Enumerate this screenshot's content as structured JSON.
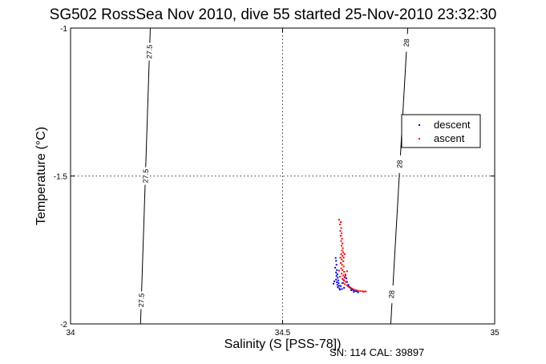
{
  "chart_data": {
    "type": "scatter",
    "title": "SG502 RossSea Nov 2010, dive 55 started 25-Nov-2010 23:32:30",
    "xlabel": "Salinity (S [PSS-78])",
    "ylabel": "Temperature (°C)",
    "xlim": [
      34,
      35
    ],
    "ylim": [
      -2,
      -1
    ],
    "xticks": [
      34,
      34.5,
      35
    ],
    "yticks": [
      -2,
      -1.5,
      -1
    ],
    "xtick_labels": [
      "34",
      "34.5",
      "35"
    ],
    "ytick_labels": [
      "-2",
      "-1.5",
      "-1"
    ],
    "grid": true,
    "legend_position": "top-right",
    "isopycnals": [
      {
        "label": "27.5",
        "points": [
          [
            34.188,
            -1
          ],
          [
            34.165,
            -2
          ]
        ],
        "label_positions": [
          [
            34.186,
            -1.08
          ],
          [
            34.177,
            -1.5
          ],
          [
            34.167,
            -1.92
          ]
        ]
      },
      {
        "label": "28",
        "points": [
          [
            34.795,
            -1
          ],
          [
            34.755,
            -2
          ]
        ],
        "label_positions": [
          [
            34.792,
            -1.05
          ],
          [
            34.776,
            -1.46
          ],
          [
            34.757,
            -1.9
          ]
        ]
      }
    ],
    "series": [
      {
        "name": "descent",
        "color": "#0000ff",
        "points": [
          [
            34.625,
            -1.777
          ],
          [
            34.626,
            -1.787
          ],
          [
            34.627,
            -1.8
          ],
          [
            34.624,
            -1.81
          ],
          [
            34.628,
            -1.818
          ],
          [
            34.626,
            -1.826
          ],
          [
            34.629,
            -1.832
          ],
          [
            34.627,
            -1.838
          ],
          [
            34.63,
            -1.844
          ],
          [
            34.626,
            -1.85
          ],
          [
            34.631,
            -1.853
          ],
          [
            34.628,
            -1.859
          ],
          [
            34.632,
            -1.862
          ],
          [
            34.629,
            -1.868
          ],
          [
            34.633,
            -1.871
          ],
          [
            34.63,
            -1.876
          ],
          [
            34.634,
            -1.88
          ],
          [
            34.637,
            -1.872
          ],
          [
            34.641,
            -1.862
          ],
          [
            34.644,
            -1.852
          ],
          [
            34.646,
            -1.843
          ],
          [
            34.648,
            -1.836
          ],
          [
            34.65,
            -1.846
          ],
          [
            34.652,
            -1.858
          ],
          [
            34.655,
            -1.868
          ],
          [
            34.658,
            -1.876
          ],
          [
            34.661,
            -1.88
          ],
          [
            34.664,
            -1.884
          ],
          [
            34.667,
            -1.886
          ],
          [
            34.671,
            -1.888
          ],
          [
            34.675,
            -1.89
          ],
          [
            34.678,
            -1.893
          ],
          [
            34.622,
            -1.856
          ],
          [
            34.62,
            -1.864
          ],
          [
            34.635,
            -1.884
          ],
          [
            34.64,
            -1.882
          ],
          [
            34.645,
            -1.878
          ],
          [
            34.654,
            -1.872
          ],
          [
            34.662,
            -1.886
          ],
          [
            34.668,
            -1.892
          ]
        ]
      },
      {
        "name": "ascent",
        "color": "#ff0000",
        "points": [
          [
            34.633,
            -1.648
          ],
          [
            34.637,
            -1.656
          ],
          [
            34.635,
            -1.664
          ],
          [
            34.638,
            -1.676
          ],
          [
            34.636,
            -1.686
          ],
          [
            34.639,
            -1.694
          ],
          [
            34.637,
            -1.702
          ],
          [
            34.64,
            -1.712
          ],
          [
            34.638,
            -1.72
          ],
          [
            34.641,
            -1.728
          ],
          [
            34.639,
            -1.736
          ],
          [
            34.642,
            -1.744
          ],
          [
            34.64,
            -1.752
          ],
          [
            34.643,
            -1.758
          ],
          [
            34.638,
            -1.764
          ],
          [
            34.641,
            -1.77
          ],
          [
            34.636,
            -1.776
          ],
          [
            34.639,
            -1.782
          ],
          [
            34.643,
            -1.788
          ],
          [
            34.637,
            -1.794
          ],
          [
            34.64,
            -1.8
          ],
          [
            34.644,
            -1.806
          ],
          [
            34.638,
            -1.812
          ],
          [
            34.641,
            -1.818
          ],
          [
            34.645,
            -1.824
          ],
          [
            34.639,
            -1.83
          ],
          [
            34.643,
            -1.836
          ],
          [
            34.647,
            -1.842
          ],
          [
            34.641,
            -1.848
          ],
          [
            34.645,
            -1.854
          ],
          [
            34.649,
            -1.858
          ],
          [
            34.643,
            -1.862
          ],
          [
            34.647,
            -1.866
          ],
          [
            34.652,
            -1.87
          ],
          [
            34.656,
            -1.874
          ],
          [
            34.66,
            -1.878
          ],
          [
            34.664,
            -1.881
          ],
          [
            34.668,
            -1.884
          ],
          [
            34.673,
            -1.886
          ],
          [
            34.678,
            -1.888
          ],
          [
            34.683,
            -1.889
          ],
          [
            34.688,
            -1.89
          ],
          [
            34.692,
            -1.891
          ],
          [
            34.696,
            -1.89
          ],
          [
            34.648,
            -1.833
          ],
          [
            34.652,
            -1.822
          ],
          [
            34.635,
            -1.84
          ],
          [
            34.633,
            -1.82
          ],
          [
            34.644,
            -1.776
          ],
          [
            34.646,
            -1.764
          ]
        ]
      }
    ]
  },
  "footer": {
    "serial_text": "SN: 114  CAL: 39897"
  }
}
